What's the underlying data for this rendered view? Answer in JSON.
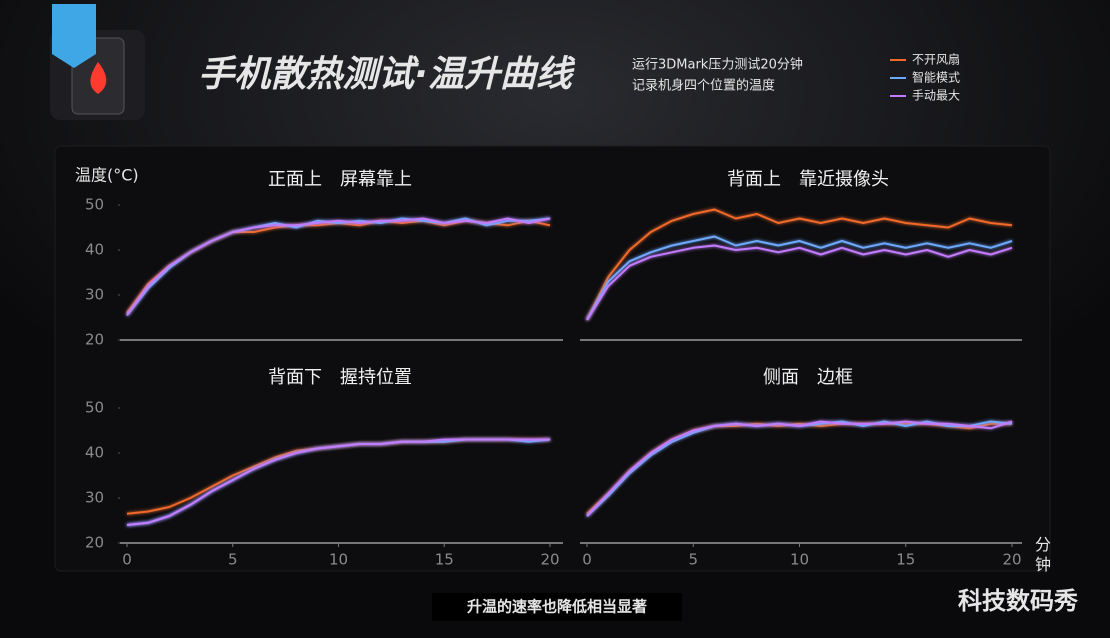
{
  "header": {
    "title": "手机散热测试·温升曲线",
    "subtitle": [
      "运行3DMark压力测试20分钟",
      "记录机身四个位置的温度"
    ]
  },
  "y_axis_label": "温度(°C)",
  "x_axis_label": "分钟",
  "caption": "升温的速率也降低相当显著",
  "watermark": "科技数码秀",
  "chart_data": [
    {
      "type": "line",
      "title": "正面上　屏幕靠上",
      "x": [
        0,
        1,
        2,
        3,
        4,
        5,
        6,
        7,
        8,
        9,
        10,
        11,
        12,
        13,
        14,
        15,
        16,
        17,
        18,
        19,
        20
      ],
      "xlim": [
        0,
        20
      ],
      "ylim": [
        20,
        50
      ],
      "yticks": [
        20,
        30,
        40,
        50
      ],
      "series": [
        {
          "name": "不开风扇",
          "color": "#f0692a",
          "values": [
            26,
            32.5,
            36.5,
            39.5,
            42,
            44,
            44,
            45,
            45.5,
            45.5,
            46,
            45.5,
            46.5,
            46,
            46.5,
            45.5,
            46.5,
            46,
            45.5,
            46.5,
            45.5
          ]
        },
        {
          "name": "智能模式",
          "color": "#6ea9ff",
          "values": [
            25.5,
            31.5,
            36,
            39.5,
            42,
            44,
            45,
            46,
            45,
            46.5,
            46,
            46.5,
            46,
            47,
            46.5,
            46,
            47,
            45.5,
            46.5,
            46.5,
            47
          ]
        },
        {
          "name": "手动最大",
          "color": "#c27cff",
          "values": [
            25.5,
            32,
            36.5,
            39.5,
            42,
            44,
            45,
            45.5,
            45.5,
            46,
            46.5,
            46,
            46.5,
            46.5,
            47,
            46,
            46.5,
            46,
            47,
            46,
            47
          ]
        }
      ]
    },
    {
      "type": "line",
      "title": "背面上　靠近摄像头",
      "x": [
        0,
        1,
        2,
        3,
        4,
        5,
        6,
        7,
        8,
        9,
        10,
        11,
        12,
        13,
        14,
        15,
        16,
        17,
        18,
        19,
        20
      ],
      "xlim": [
        0,
        20
      ],
      "ylim": [
        20,
        50
      ],
      "series": [
        {
          "color": "#f0692a",
          "values": [
            24.5,
            34,
            40,
            44,
            46.5,
            48,
            49,
            47,
            48,
            46,
            47,
            46,
            47,
            46,
            47,
            46,
            45.5,
            45,
            47,
            46,
            45.5
          ]
        },
        {
          "color": "#6ea9ff",
          "values": [
            24.5,
            33,
            37.5,
            39.5,
            41,
            42,
            43,
            41,
            42,
            41,
            42,
            40.5,
            42,
            40.5,
            41.5,
            40.5,
            41.5,
            40.5,
            41.5,
            40.5,
            42
          ]
        },
        {
          "color": "#c27cff",
          "values": [
            24.5,
            32,
            36.5,
            38.5,
            39.5,
            40.5,
            41,
            40,
            40.5,
            39.5,
            40.5,
            39,
            40.5,
            39,
            40,
            39,
            40,
            38.5,
            40,
            39,
            40.5
          ]
        }
      ]
    },
    {
      "type": "line",
      "title": "背面下　握持位置",
      "x": [
        0,
        1,
        2,
        3,
        4,
        5,
        6,
        7,
        8,
        9,
        10,
        11,
        12,
        13,
        14,
        15,
        16,
        17,
        18,
        19,
        20
      ],
      "xlim": [
        0,
        20
      ],
      "ylim": [
        20,
        50
      ],
      "yticks": [
        20,
        30,
        40,
        50
      ],
      "xticks": [
        0,
        5,
        10,
        15,
        20
      ],
      "series": [
        {
          "color": "#f0692a",
          "values": [
            26.5,
            27,
            28,
            30,
            32.5,
            35,
            37,
            39,
            40.5,
            41,
            41.5,
            42,
            42,
            42.5,
            42.5,
            42.5,
            43,
            43,
            43,
            43,
            43
          ]
        },
        {
          "color": "#6ea9ff",
          "values": [
            24,
            24.5,
            26,
            28.5,
            31.5,
            34,
            36.5,
            38.5,
            40,
            41,
            41.5,
            42,
            42,
            42.5,
            42.5,
            42.5,
            43,
            43,
            43,
            42.5,
            43
          ]
        },
        {
          "color": "#c27cff",
          "values": [
            24,
            24.5,
            26,
            28.5,
            31.5,
            34,
            36.5,
            38.5,
            40,
            41,
            41.5,
            42,
            42,
            42.5,
            42.5,
            43,
            43,
            43,
            43,
            43,
            43
          ]
        }
      ]
    },
    {
      "type": "line",
      "title": "侧面　边框",
      "x": [
        0,
        1,
        2,
        3,
        4,
        5,
        6,
        7,
        8,
        9,
        10,
        11,
        12,
        13,
        14,
        15,
        16,
        17,
        18,
        19,
        20
      ],
      "xlim": [
        0,
        20
      ],
      "ylim": [
        20,
        50
      ],
      "xticks": [
        0,
        5,
        10,
        15,
        20
      ],
      "series": [
        {
          "color": "#f0692a",
          "values": [
            26.5,
            31,
            36,
            40,
            43,
            45,
            46,
            46,
            46.5,
            46,
            46.5,
            46,
            46.5,
            46.5,
            46.5,
            46.5,
            46.5,
            46,
            45.5,
            46.5,
            46.5
          ]
        },
        {
          "color": "#6ea9ff",
          "values": [
            26,
            30.5,
            35.5,
            39.5,
            42.5,
            44.5,
            46,
            46.5,
            46,
            46.5,
            46,
            46.5,
            47,
            46,
            47,
            46,
            47,
            46,
            46,
            47,
            46.5
          ]
        },
        {
          "color": "#c27cff",
          "values": [
            26,
            31,
            36,
            40,
            43,
            45,
            46,
            46.5,
            46,
            46.5,
            46,
            47,
            46.5,
            46.5,
            46.5,
            47,
            46.5,
            46.5,
            46,
            45.5,
            47
          ]
        }
      ]
    }
  ]
}
